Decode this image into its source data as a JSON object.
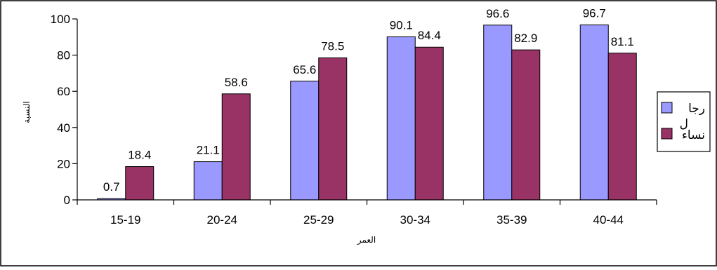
{
  "chart_data": {
    "type": "bar",
    "title": "",
    "xlabel": "العمر",
    "ylabel": "النسبة",
    "categories": [
      "15-19",
      "20-24",
      "25-29",
      "30-34",
      "35-39",
      "40-44"
    ],
    "series": [
      {
        "name": "رجال",
        "legend_lines": [
          "رجا",
          "ل"
        ],
        "color": "#9999FF",
        "values": [
          0.7,
          21.1,
          65.6,
          90.1,
          96.6,
          96.7
        ]
      },
      {
        "name": "نساء",
        "legend_lines": [
          "نساء"
        ],
        "color": "#993366",
        "values": [
          18.4,
          58.6,
          78.5,
          84.4,
          82.9,
          81.1
        ]
      }
    ],
    "ylim": [
      0,
      100
    ],
    "yticks": [
      0,
      20,
      40,
      60,
      80,
      100
    ],
    "grid": false,
    "legend_position": "right"
  }
}
